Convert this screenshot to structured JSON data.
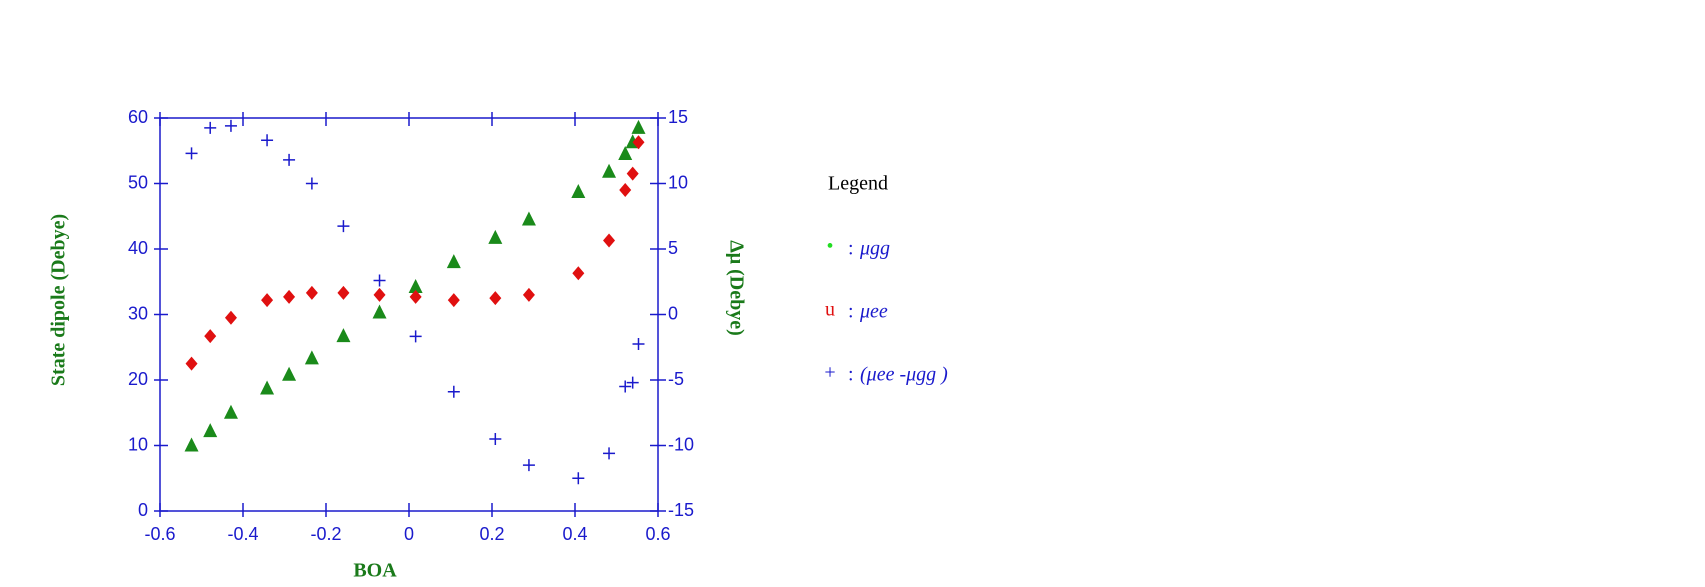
{
  "chart_data": {
    "type": "scatter",
    "x_label": "BOA",
    "y_label": "State dipole (Debye)",
    "y2_label": "Δμ (Debye)",
    "x": [
      -0.524,
      -0.479,
      -0.429,
      -0.342,
      -0.289,
      -0.234,
      -0.158,
      -0.071,
      0.016,
      0.108,
      0.208,
      0.289,
      0.408,
      0.482,
      0.521,
      0.539,
      0.553
    ],
    "xlim": [
      -0.6,
      0.6
    ],
    "xticks": [
      -0.6,
      -0.4,
      -0.2,
      0,
      0.2,
      0.4,
      0.6
    ],
    "ylim": [
      0,
      60
    ],
    "yticks": [
      0,
      10,
      20,
      30,
      40,
      50,
      60
    ],
    "y2lim": [
      -15,
      15
    ],
    "y2ticks": [
      -15,
      -10,
      -5,
      0,
      5,
      10,
      15
    ],
    "axis_color": "#1a1acc",
    "legend": {
      "title": "Legend",
      "separator": ":"
    },
    "series": [
      {
        "name": "μgg",
        "color": "#1a8a1a",
        "marker": "triangle",
        "symbol": "•",
        "symbol_color": "#22dd22",
        "values": [
          10,
          12.2,
          15,
          18.7,
          20.8,
          23.3,
          26.7,
          30.3,
          34.2,
          38,
          41.7,
          44.5,
          48.7,
          51.8,
          54.5,
          56.3,
          58.5
        ]
      },
      {
        "name": "μee",
        "color": "#e01010",
        "marker": "diamond",
        "symbol": "u",
        "symbol_color": "#e01010",
        "values": [
          22.5,
          26.7,
          29.5,
          32.2,
          32.7,
          33.3,
          33.3,
          33,
          32.7,
          32.2,
          32.5,
          33,
          36.3,
          41.3,
          49,
          51.5,
          56.3
        ]
      },
      {
        "name": "(μee -μgg )",
        "color": "#1a1acc",
        "marker": "plus",
        "symbol": "+",
        "symbol_color": "#1a1acc",
        "axis": "y2",
        "values": [
          12.3,
          14.25,
          14.4,
          13.3,
          11.8,
          10,
          6.75,
          2.6,
          -1.67,
          -5.9,
          -9.5,
          -11.5,
          -12.5,
          -10.6,
          -5.5,
          -5.2,
          -2.25
        ]
      }
    ]
  }
}
